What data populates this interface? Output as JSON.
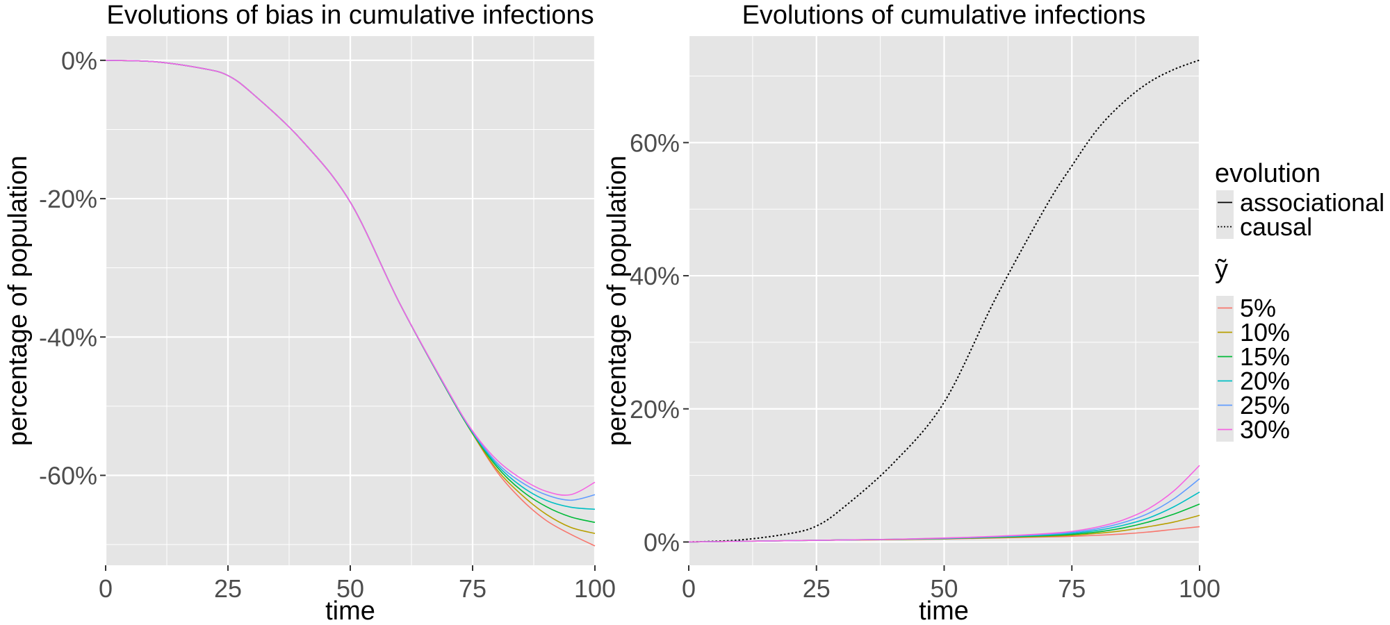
{
  "chart_data": [
    {
      "type": "line",
      "title": "Evolutions of bias in cumulative infections",
      "xlabel": "time",
      "ylabel": "percentage of population",
      "xlim": [
        0,
        100
      ],
      "ylim": [
        -73,
        3.5
      ],
      "xticks": [
        0,
        25,
        50,
        75,
        100
      ],
      "xtick_labels": [
        "0",
        "25",
        "50",
        "75",
        "100"
      ],
      "yticks": [
        0,
        -20,
        -40,
        -60
      ],
      "ytick_labels": [
        "0%",
        "-20%",
        "-40%",
        "-60%"
      ],
      "x": [
        0,
        10,
        20,
        25,
        30,
        40,
        50,
        60,
        70,
        75,
        80,
        85,
        90,
        95,
        100
      ],
      "series": [
        {
          "name": "5%",
          "color": "#F8766D",
          "linetype": "solid",
          "values": [
            0,
            -0.2,
            -1.2,
            -2.2,
            -4.8,
            -11.5,
            -20.5,
            -35,
            -48,
            -54,
            -59.5,
            -63.5,
            -66.5,
            -68.5,
            -70.2
          ]
        },
        {
          "name": "10%",
          "color": "#B79F00",
          "linetype": "solid",
          "values": [
            0,
            -0.2,
            -1.2,
            -2.2,
            -4.8,
            -11.5,
            -20.5,
            -35,
            -48,
            -54,
            -59.2,
            -62.8,
            -65.6,
            -67.5,
            -68.4
          ]
        },
        {
          "name": "15%",
          "color": "#00BA38",
          "linetype": "solid",
          "values": [
            0,
            -0.2,
            -1.2,
            -2.2,
            -4.8,
            -11.5,
            -20.5,
            -35,
            -48,
            -53.9,
            -58.8,
            -62.2,
            -64.5,
            -66,
            -66.8
          ]
        },
        {
          "name": "20%",
          "color": "#00BFC4",
          "linetype": "solid",
          "values": [
            0,
            -0.2,
            -1.2,
            -2.2,
            -4.8,
            -11.5,
            -20.5,
            -35,
            -47.9,
            -53.8,
            -58.5,
            -61.6,
            -63.6,
            -64.6,
            -64.9
          ]
        },
        {
          "name": "25%",
          "color": "#619CFF",
          "linetype": "solid",
          "values": [
            0,
            -0.2,
            -1.2,
            -2.2,
            -4.8,
            -11.5,
            -20.5,
            -35,
            -47.9,
            -53.7,
            -58.2,
            -61.0,
            -62.8,
            -63.6,
            -62.8
          ]
        },
        {
          "name": "30%",
          "color": "#F564E3",
          "linetype": "solid",
          "values": [
            0,
            -0.2,
            -1.2,
            -2.2,
            -4.8,
            -11.5,
            -20.5,
            -35,
            -47.8,
            -53.6,
            -57.8,
            -60.5,
            -62.3,
            -62.8,
            -61.0
          ]
        }
      ]
    },
    {
      "type": "line",
      "title": "Evolutions of cumulative infections",
      "xlabel": "time",
      "ylabel": "percentage of population",
      "xlim": [
        0,
        100
      ],
      "ylim": [
        -3.5,
        76
      ],
      "xticks": [
        0,
        25,
        50,
        75,
        100
      ],
      "xtick_labels": [
        "0",
        "25",
        "50",
        "75",
        "100"
      ],
      "yticks": [
        0,
        20,
        40,
        60
      ],
      "ytick_labels": [
        "0%",
        "20%",
        "40%",
        "60%"
      ],
      "x": [
        0,
        10,
        20,
        25,
        30,
        40,
        50,
        60,
        70,
        75,
        80,
        85,
        90,
        95,
        100
      ],
      "series": [
        {
          "name": "causal",
          "color": "#000000",
          "linetype": "dotted",
          "values": [
            0,
            0.3,
            1.3,
            2.4,
            5.0,
            11.8,
            21.0,
            36.5,
            50.5,
            56.5,
            62.0,
            66.0,
            69.0,
            71.0,
            72.4
          ]
        },
        {
          "name": "5%",
          "color": "#F8766D",
          "linetype": "solid",
          "values": [
            0,
            0.1,
            0.2,
            0.25,
            0.3,
            0.35,
            0.45,
            0.6,
            0.75,
            0.85,
            1.0,
            1.2,
            1.5,
            1.9,
            2.3
          ]
        },
        {
          "name": "10%",
          "color": "#B79F00",
          "linetype": "solid",
          "values": [
            0,
            0.1,
            0.2,
            0.25,
            0.3,
            0.35,
            0.5,
            0.65,
            0.85,
            1.0,
            1.3,
            1.7,
            2.3,
            3.0,
            4.0
          ]
        },
        {
          "name": "15%",
          "color": "#00BA38",
          "linetype": "solid",
          "values": [
            0,
            0.1,
            0.2,
            0.25,
            0.3,
            0.4,
            0.5,
            0.7,
            0.95,
            1.15,
            1.5,
            2.1,
            3.0,
            4.2,
            5.7
          ]
        },
        {
          "name": "20%",
          "color": "#00BFC4",
          "linetype": "solid",
          "values": [
            0,
            0.1,
            0.2,
            0.25,
            0.3,
            0.4,
            0.55,
            0.75,
            1.05,
            1.3,
            1.75,
            2.5,
            3.6,
            5.3,
            7.5
          ]
        },
        {
          "name": "25%",
          "color": "#619CFF",
          "linetype": "solid",
          "values": [
            0,
            0.1,
            0.2,
            0.25,
            0.3,
            0.4,
            0.55,
            0.8,
            1.15,
            1.45,
            2.0,
            2.9,
            4.3,
            6.5,
            9.5
          ]
        },
        {
          "name": "30%",
          "color": "#F564E3",
          "linetype": "solid",
          "values": [
            0,
            0.1,
            0.2,
            0.25,
            0.3,
            0.4,
            0.6,
            0.85,
            1.25,
            1.6,
            2.25,
            3.3,
            5.0,
            7.7,
            11.5
          ]
        }
      ]
    }
  ],
  "legend": {
    "evolution_title": "evolution",
    "evolution_items": [
      {
        "label": "associational",
        "linetype": "solid"
      },
      {
        "label": "causal",
        "linetype": "dotted"
      }
    ],
    "y_title": "ỹ",
    "y_items": [
      {
        "label": "5%",
        "color": "#F8766D"
      },
      {
        "label": "10%",
        "color": "#B79F00"
      },
      {
        "label": "15%",
        "color": "#00BA38"
      },
      {
        "label": "20%",
        "color": "#00BFC4"
      },
      {
        "label": "25%",
        "color": "#619CFF"
      },
      {
        "label": "30%",
        "color": "#F564E3"
      }
    ]
  },
  "colors": {
    "panel_background": "#E5E5E5",
    "grid": "#FFFFFF",
    "tick_text": "#4d4d4d"
  }
}
